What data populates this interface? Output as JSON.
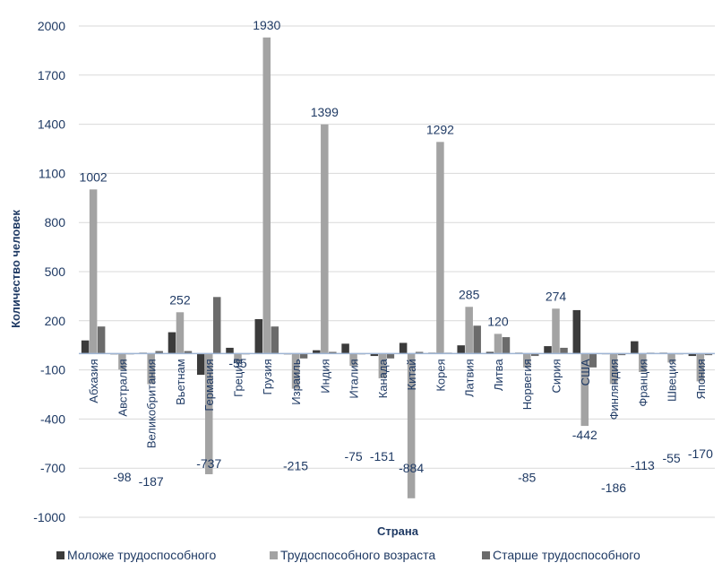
{
  "chart_data": {
    "type": "bar",
    "xlabel": "Страна",
    "ylabel": "Количество человек",
    "ylim": [
      -1000,
      2000
    ],
    "yticks": [
      -1000,
      -700,
      -400,
      -100,
      200,
      500,
      800,
      1100,
      1400,
      1700,
      2000
    ],
    "grid": true,
    "legend_position": "bottom",
    "categories": [
      "Абхазия",
      "Австралия",
      "Великобритания",
      "Вьетнам",
      "Германия",
      "Греция",
      "Грузия",
      "Израиль",
      "Индия",
      "Италия",
      "Канада",
      "Китай",
      "Корея",
      "Латвия",
      "Литва",
      "Норвегия",
      "Сирия",
      "США",
      "Финляндия",
      "Франция",
      "Швеция",
      "Япония"
    ],
    "series": [
      {
        "name": "Моложе трудоспособного",
        "color": "#3b3b3b",
        "values": [
          80,
          -5,
          5,
          130,
          -130,
          35,
          210,
          -5,
          20,
          60,
          -15,
          65,
          5,
          50,
          10,
          5,
          45,
          265,
          0,
          75,
          5,
          -15
        ]
      },
      {
        "name": "Трудоспособного возраста",
        "color": "#a3a3a3",
        "values": [
          1002,
          -98,
          -187,
          252,
          -737,
          -55,
          1930,
          -215,
          1399,
          -75,
          -151,
          -884,
          1292,
          285,
          120,
          -85,
          274,
          -442,
          -186,
          -113,
          -55,
          -170
        ]
      },
      {
        "name": "Старше трудоспособного",
        "color": "#6b6b6b",
        "values": [
          165,
          -5,
          15,
          15,
          345,
          -5,
          165,
          -30,
          10,
          -5,
          -30,
          10,
          5,
          170,
          100,
          -15,
          35,
          -85,
          -10,
          5,
          -5,
          -10
        ]
      }
    ],
    "data_labels": [
      {
        "index": 0,
        "series": 1,
        "text": "1002"
      },
      {
        "index": 1,
        "series": 1,
        "text": "-98"
      },
      {
        "index": 2,
        "series": 1,
        "text": "-187"
      },
      {
        "index": 3,
        "series": 1,
        "text": "252"
      },
      {
        "index": 4,
        "series": 1,
        "text": "-737"
      },
      {
        "index": 5,
        "series": 1,
        "text": "-55"
      },
      {
        "index": 6,
        "series": 1,
        "text": "1930"
      },
      {
        "index": 7,
        "series": 1,
        "text": "-215"
      },
      {
        "index": 8,
        "series": 1,
        "text": "1399"
      },
      {
        "index": 9,
        "series": 1,
        "text": "-75"
      },
      {
        "index": 10,
        "series": 1,
        "text": "-151"
      },
      {
        "index": 11,
        "series": 1,
        "text": "-884"
      },
      {
        "index": 12,
        "series": 1,
        "text": "1292"
      },
      {
        "index": 13,
        "series": 1,
        "text": "285"
      },
      {
        "index": 14,
        "series": 1,
        "text": "120"
      },
      {
        "index": 15,
        "series": 1,
        "text": "-85"
      },
      {
        "index": 16,
        "series": 1,
        "text": "274"
      },
      {
        "index": 17,
        "series": 1,
        "text": "-442"
      },
      {
        "index": 18,
        "series": 1,
        "text": "-186"
      },
      {
        "index": 19,
        "series": 1,
        "text": "-113"
      },
      {
        "index": 20,
        "series": 1,
        "text": "-55"
      },
      {
        "index": 21,
        "series": 1,
        "text": "-170"
      }
    ]
  }
}
